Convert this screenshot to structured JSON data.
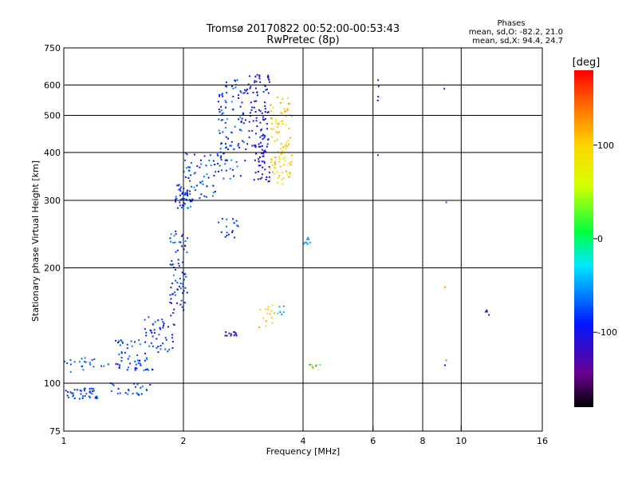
{
  "chart_data": {
    "type": "scatter",
    "title": "Tromsø 20170822 00:52:00-00:53:43",
    "subtitle": "RwPretec (8p)",
    "xlabel": "Frequency [MHz]",
    "ylabel": "Stationary phase Virtual Height [km]",
    "x_scale": "log",
    "y_scale": "log",
    "xlim": [
      1,
      16
    ],
    "ylim": [
      75,
      750
    ],
    "x_ticks": [
      1,
      2,
      4,
      6,
      8,
      10,
      16
    ],
    "y_ticks": [
      75,
      100,
      200,
      300,
      400,
      500,
      600,
      750
    ],
    "grid_x": [
      2,
      4,
      6,
      8,
      10
    ],
    "grid_y": [
      100,
      200,
      300,
      400,
      500,
      600
    ],
    "grid": true,
    "colorbar": {
      "label": "[deg]",
      "range": [
        -180,
        180
      ],
      "ticks": [
        -100,
        0,
        100
      ]
    },
    "stats": {
      "heading": "Phases",
      "line1": "mean, sd,O: -82.2, 21.0",
      "line2": "mean, sd,X: 94.4, 24.7"
    },
    "clusters": [
      {
        "f": [
          1.0,
          1.22
        ],
        "h": [
          91,
          97
        ],
        "phase": [
          -90,
          -70
        ],
        "n": 40
      },
      {
        "f": [
          1.0,
          1.3
        ],
        "h": [
          107,
          117
        ],
        "phase": [
          -80,
          -55
        ],
        "n": 22
      },
      {
        "f": [
          1.3,
          1.65
        ],
        "h": [
          93,
          100
        ],
        "phase": [
          -90,
          -60
        ],
        "n": 25
      },
      {
        "f": [
          1.35,
          1.7
        ],
        "h": [
          108,
          130
        ],
        "phase": [
          -95,
          -60
        ],
        "n": 55
      },
      {
        "f": [
          1.6,
          1.9
        ],
        "h": [
          120,
          150
        ],
        "phase": [
          -100,
          -60
        ],
        "n": 45
      },
      {
        "f": [
          1.85,
          2.05
        ],
        "h": [
          150,
          250
        ],
        "phase": [
          -110,
          -55
        ],
        "n": 70
      },
      {
        "f": [
          1.9,
          2.1
        ],
        "h": [
          285,
          330
        ],
        "phase": [
          -105,
          -55
        ],
        "n": 45
      },
      {
        "f": [
          2.0,
          2.45
        ],
        "h": [
          300,
          400
        ],
        "phase": [
          -100,
          -50
        ],
        "n": 60
      },
      {
        "f": [
          2.45,
          2.9
        ],
        "h": [
          340,
          620
        ],
        "phase": [
          -110,
          -50
        ],
        "n": 110
      },
      {
        "f": [
          2.9,
          3.3
        ],
        "h": [
          400,
          640
        ],
        "phase": [
          -125,
          -80
        ],
        "n": 85
      },
      {
        "f": [
          3.0,
          3.3
        ],
        "h": [
          330,
          420
        ],
        "phase": [
          -130,
          -90
        ],
        "n": 40
      },
      {
        "f": [
          3.3,
          3.75
        ],
        "h": [
          330,
          560
        ],
        "phase": [
          70,
          130
        ],
        "n": 100
      },
      {
        "f": [
          2.45,
          2.8
        ],
        "h": [
          240,
          270
        ],
        "phase": [
          -100,
          -60
        ],
        "n": 18
      },
      {
        "f": [
          3.1,
          3.4
        ],
        "h": [
          140,
          160
        ],
        "phase": [
          85,
          120
        ],
        "n": 15
      },
      {
        "f": [
          3.45,
          3.6
        ],
        "h": [
          150,
          160
        ],
        "phase": [
          -60,
          -30
        ],
        "n": 6
      },
      {
        "f": [
          3.9,
          4.2
        ],
        "h": [
          230,
          240
        ],
        "phase": [
          -60,
          -40
        ],
        "n": 8
      },
      {
        "f": [
          3.95,
          4.45
        ],
        "h": [
          108,
          112
        ],
        "phase": [
          -70,
          110
        ],
        "n": 10
      },
      {
        "f": [
          2.5,
          2.75
        ],
        "h": [
          133,
          137
        ],
        "phase": [
          -120,
          -100
        ],
        "n": 12
      },
      {
        "f": [
          6.15,
          6.2
        ],
        "h": [
          350,
          680
        ],
        "phase": [
          -110,
          -90
        ],
        "n": 5
      },
      {
        "f": [
          11.5,
          11.8
        ],
        "h": [
          150,
          155
        ],
        "phase": [
          -130,
          -115
        ],
        "n": 4
      },
      {
        "f": [
          9.0,
          9.2
        ],
        "h": [
          110,
          590
        ],
        "phase": [
          -100,
          150
        ],
        "n": 5
      }
    ]
  }
}
